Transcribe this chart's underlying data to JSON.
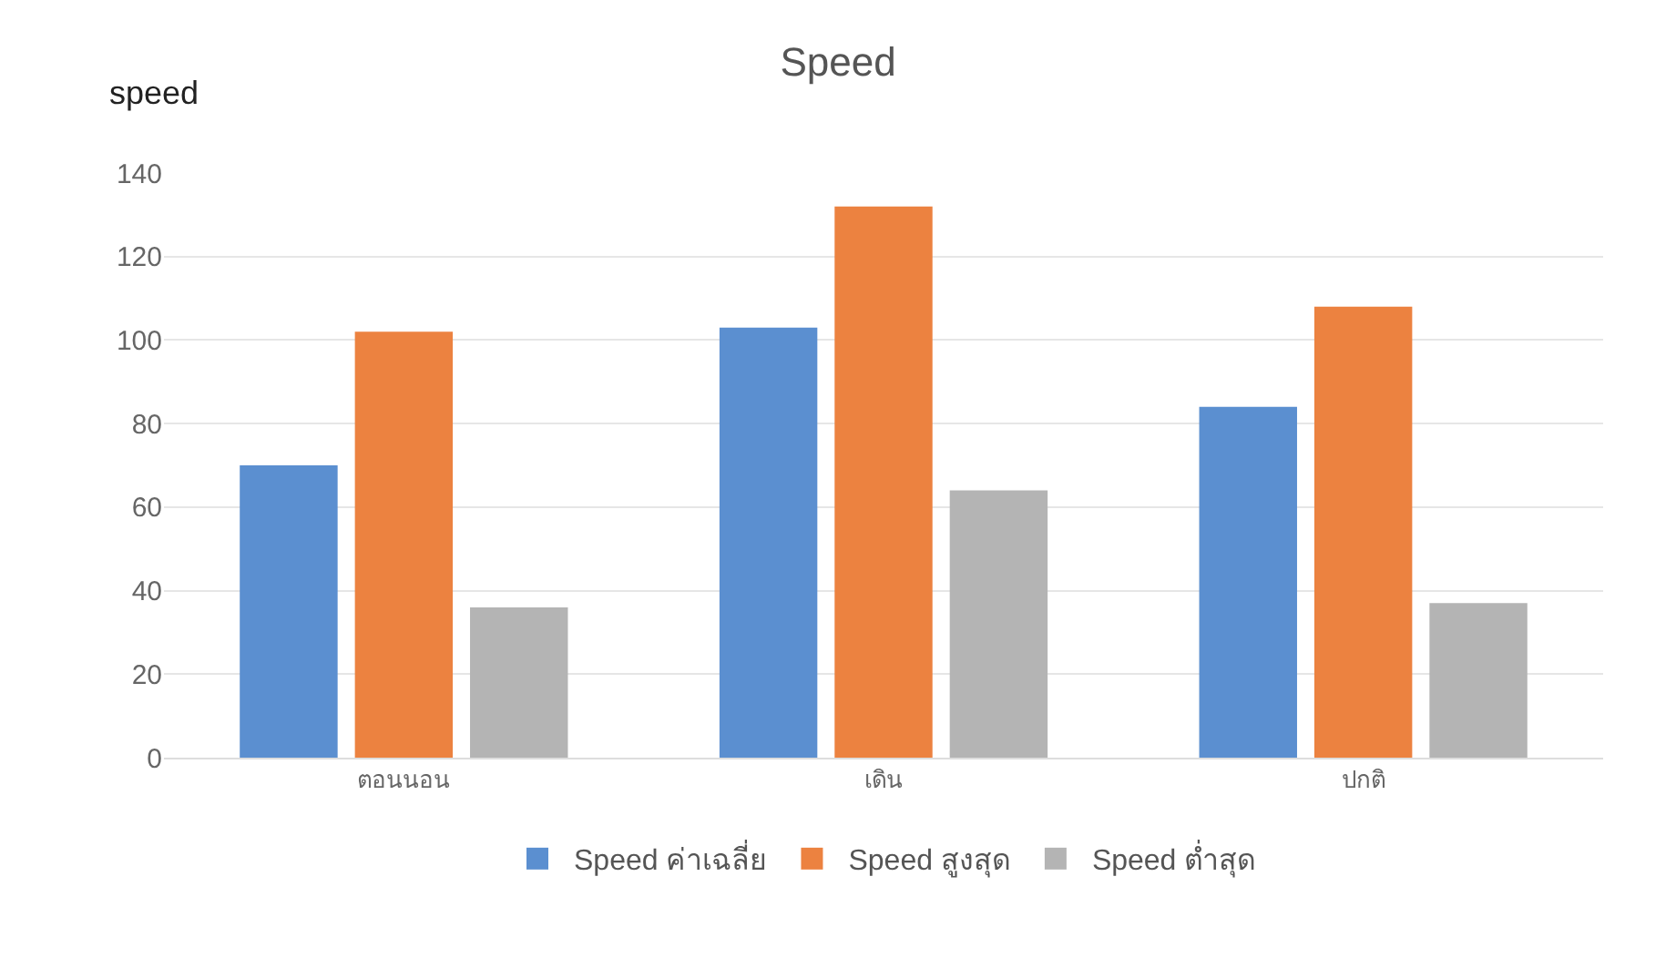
{
  "chart_data": {
    "type": "bar",
    "title": "Speed",
    "ylabel": "speed",
    "categories": [
      "ตอนนอน",
      "เดิน",
      "ปกติ"
    ],
    "series": [
      {
        "name": "Speed ค่าเฉลี่ย",
        "color": "#5b8fd0",
        "values": [
          70,
          103,
          84
        ]
      },
      {
        "name": "Speed สูงสุด",
        "color": "#ec8240",
        "values": [
          102,
          132,
          108
        ]
      },
      {
        "name": "Speed ต่ำสุด",
        "color": "#b4b4b4",
        "values": [
          36,
          64,
          37
        ]
      }
    ],
    "ylim": [
      0,
      140
    ],
    "yticks": [
      0,
      20,
      40,
      60,
      80,
      100,
      120,
      140
    ],
    "grid": "y",
    "legend": "bottom"
  }
}
